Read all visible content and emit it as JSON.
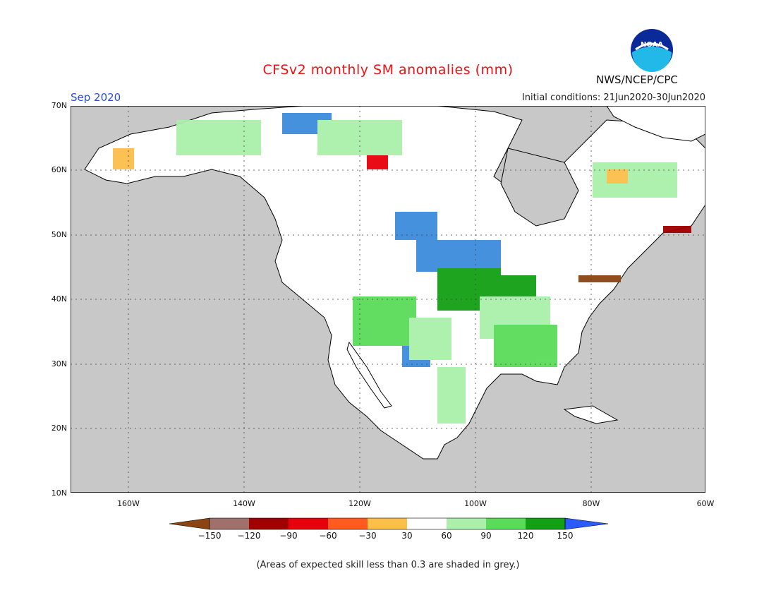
{
  "header": {
    "title": "CFSv2 monthly SM anomalies (mm)",
    "month": "Sep 2020",
    "initial_conditions": "Initial conditions: 21Jun2020-30Jun2020",
    "agency": "NWS/NCEP/CPC",
    "logo_text": "NOAA"
  },
  "map": {
    "lat_labels": [
      "70N",
      "60N",
      "50N",
      "40N",
      "30N",
      "20N",
      "10N"
    ],
    "lon_labels": [
      "160W",
      "140W",
      "120W",
      "100W",
      "80W",
      "60W"
    ],
    "extent": {
      "lon_min": -172,
      "lon_max": -60,
      "lat_min": 10,
      "lat_max": 70
    },
    "ocean_color": "#c8c8c8",
    "land_color": "#ffffff",
    "grid": "dotted"
  },
  "legend": {
    "labels": [
      "−150",
      "−120",
      "−90",
      "−60",
      "−30",
      "30",
      "60",
      "90",
      "120",
      "150"
    ],
    "colors": [
      "#8b4513",
      "#a0706a",
      "#a00000",
      "#e8000b",
      "#ff5a1f",
      "#fbbf4a",
      "#ffffff",
      "#aaf0aa",
      "#5adc5a",
      "#14a014",
      "#3c8cdc",
      "#2b5bff"
    ]
  },
  "footnote": "(Areas of expected skill less than 0.3 are shaded in grey.)"
}
